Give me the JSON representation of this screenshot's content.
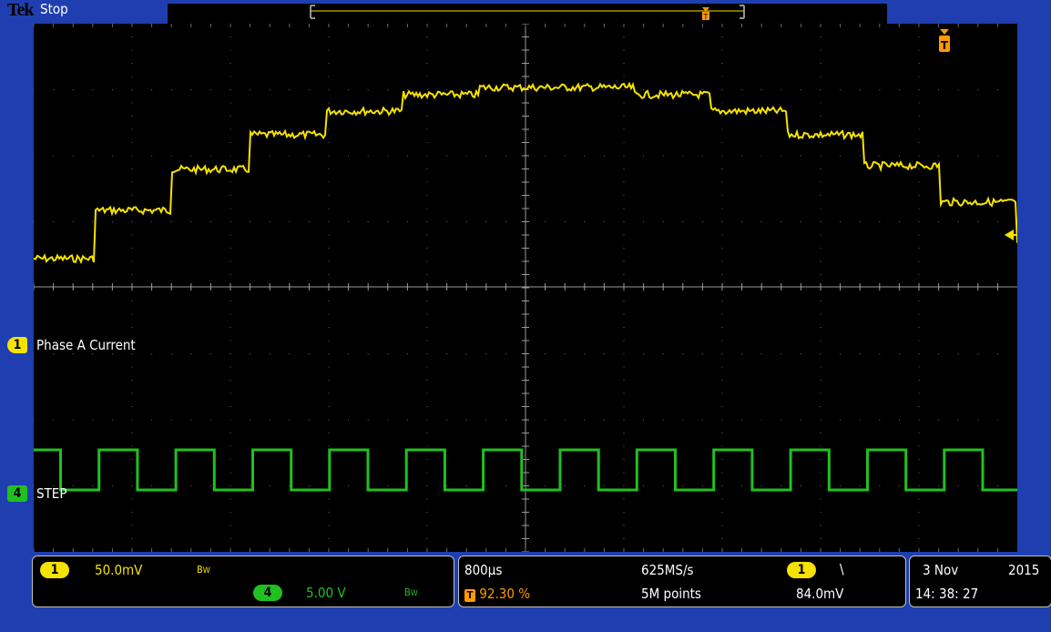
{
  "brand": "Tek",
  "acq_state": "Stop",
  "ch1": {
    "number": "1",
    "label": "Phase A Current",
    "scale": "50.0mV",
    "bw": "B",
    "bw_sub": "W",
    "color": "#f5e200"
  },
  "ch4": {
    "number": "4",
    "label": "STEP",
    "scale": "5.00 V",
    "bw": "B",
    "bw_sub": "W",
    "color": "#20c020"
  },
  "timebase": {
    "time_div": "800µs",
    "sample_rate": "625MS/s",
    "trigger_pos": "92.30 %",
    "record_length": "5M points"
  },
  "trigger": {
    "source": "1",
    "slope_symbol": "\\",
    "level": "84.0mV",
    "marker": "T"
  },
  "datetime": {
    "date_day_month": "3 Nov",
    "year": "2015",
    "time": "14: 38: 27"
  },
  "icons": {
    "trigger_marker": "trigger-t-icon",
    "ch1_ground": "ch1-ground-icon",
    "ch4_ground": "ch4-ground-icon",
    "trigger_level": "trigger-level-arrow-icon"
  },
  "colors": {
    "bezel": "#1f3fb0",
    "graticule": "#6a6a6a",
    "trigger": "#ff9a00"
  }
}
